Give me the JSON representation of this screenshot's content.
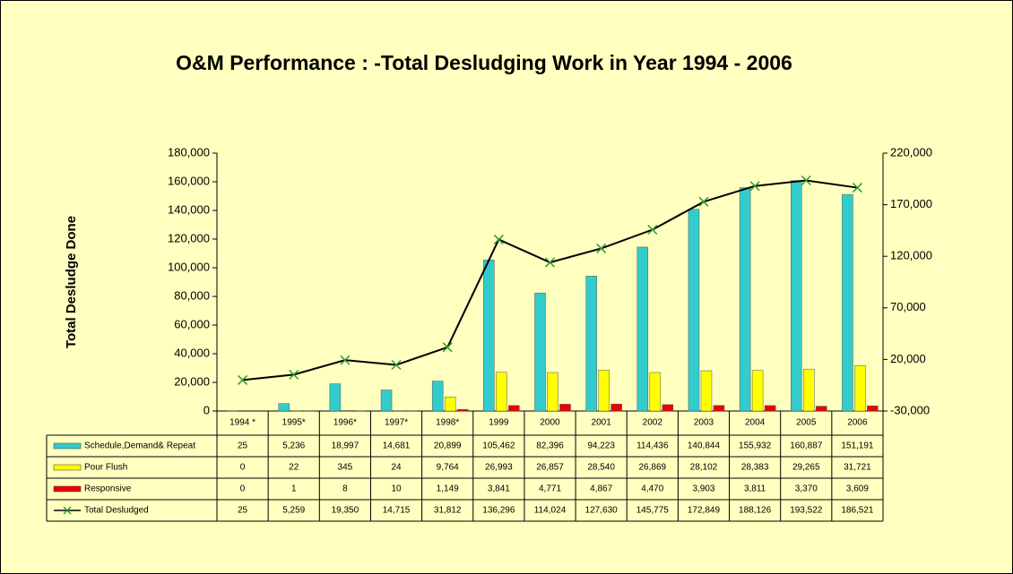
{
  "chart_data": {
    "type": "bar",
    "title": "O&M Performance : -Total Desludging Work in Year 1994 - 2006",
    "ylabel": "Total Desludge Done",
    "categories": [
      "1994 *",
      "1995*",
      "1996*",
      "1997*",
      "1998*",
      "1999",
      "2000",
      "2001",
      "2002",
      "2003",
      "2004",
      "2005",
      "2006"
    ],
    "series": [
      {
        "name": "Schedule,Demand& Repeat",
        "color": "#33cccc",
        "values": [
          25,
          5236,
          18997,
          14681,
          20899,
          105462,
          82396,
          94223,
          114436,
          140844,
          155932,
          160887,
          151191
        ],
        "value_labels": [
          "25",
          "5,236",
          "18,997",
          "14,681",
          "20,899",
          "105,462",
          "82,396",
          "94,223",
          "114,436",
          "140,844",
          "155,932",
          "160,887",
          "151,191"
        ]
      },
      {
        "name": "Pour Flush",
        "color": "#ffff00",
        "values": [
          0,
          22,
          345,
          24,
          9764,
          26993,
          26857,
          28540,
          26869,
          28102,
          28383,
          29265,
          31721
        ],
        "value_labels": [
          "0",
          "22",
          "345",
          "24",
          "9,764",
          "26,993",
          "26,857",
          "28,540",
          "26,869",
          "28,102",
          "28,383",
          "29,265",
          "31,721"
        ]
      },
      {
        "name": "Responsive",
        "color": "#ee0000",
        "values": [
          0,
          1,
          8,
          10,
          1149,
          3841,
          4771,
          4867,
          4470,
          3903,
          3811,
          3370,
          3609
        ],
        "value_labels": [
          "0",
          "1",
          "8",
          "10",
          "1,149",
          "3,841",
          "4,771",
          "4,867",
          "4,470",
          "3,903",
          "3,811",
          "3,370",
          "3,609"
        ]
      },
      {
        "name": "Total Desludged",
        "type": "line",
        "axis": "y2",
        "color": "#000000",
        "marker_color": "#339933",
        "values": [
          25,
          5259,
          19350,
          14715,
          31812,
          136296,
          114024,
          127630,
          145775,
          172849,
          188126,
          193522,
          186521
        ],
        "value_labels": [
          "25",
          "5,259",
          "19,350",
          "14,715",
          "31,812",
          "136,296",
          "114,024",
          "127,630",
          "145,775",
          "172,849",
          "188,126",
          "193,522",
          "186,521"
        ]
      }
    ],
    "ylim": [
      0,
      180000
    ],
    "yticks": [
      0,
      {
        "value": 20000,
        "label": "20,000"
      },
      {
        "value": 40000,
        "label": "40,000"
      },
      {
        "value": 60000,
        "label": "60,000"
      },
      {
        "value": 80000,
        "label": "80,000"
      },
      {
        "value": 100000,
        "label": "100,000"
      },
      {
        "value": 120000,
        "label": "120,000"
      },
      {
        "value": 140000,
        "label": "140,000"
      },
      {
        "value": 160000,
        "label": "160,000"
      },
      {
        "value": 180000,
        "label": "180,000"
      }
    ],
    "y2lim": [
      -30000,
      220000
    ],
    "y2ticks": [
      {
        "value": -30000,
        "label": "-30,000"
      },
      {
        "value": 20000,
        "label": "20,000"
      },
      {
        "value": 70000,
        "label": "70,000"
      },
      {
        "value": 120000,
        "label": "120,000"
      },
      {
        "value": 170000,
        "label": "170,000"
      },
      {
        "value": 220000,
        "label": "220,000"
      }
    ],
    "grid": false,
    "background": "#ffffc0"
  }
}
